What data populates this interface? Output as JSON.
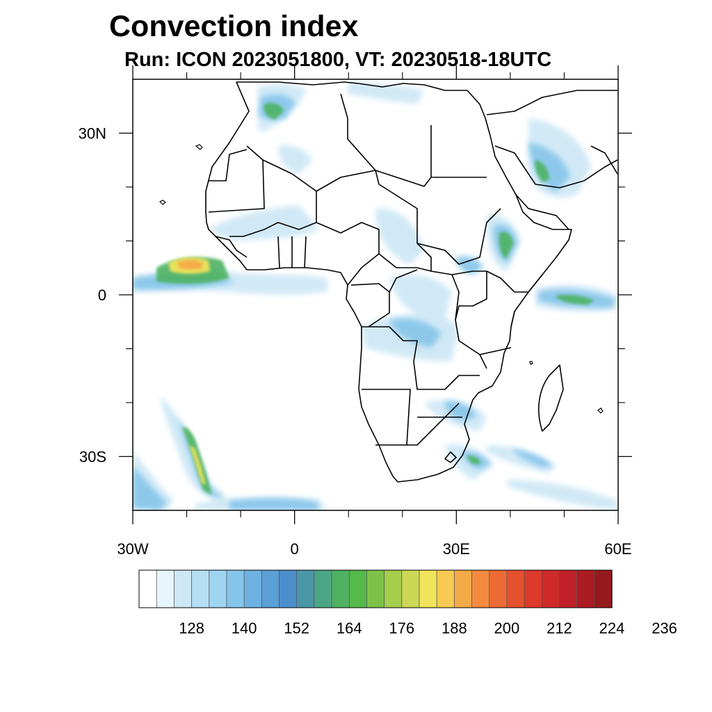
{
  "title": "Convection index",
  "subtitle": "Run: ICON 2023051800,  VT: 20230518-18UTC",
  "map": {
    "region": "Africa",
    "lon_range": [
      -30,
      60
    ],
    "lat_range": [
      -40,
      40
    ],
    "lat_ticks": [
      {
        "value": 30,
        "label": "30N"
      },
      {
        "value": 0,
        "label": "0"
      },
      {
        "value": -30,
        "label": "30S"
      }
    ],
    "lon_ticks": [
      {
        "value": -30,
        "label": "30W"
      },
      {
        "value": 0,
        "label": "0"
      },
      {
        "value": 30,
        "label": "30E"
      },
      {
        "value": 60,
        "label": "60E"
      }
    ],
    "minor_lon_ticks": [
      -20,
      -10,
      10,
      20,
      40,
      50
    ],
    "minor_lat_ticks": [
      20,
      10,
      -10,
      -20
    ]
  },
  "colorbar": {
    "labels": [
      "128",
      "140",
      "152",
      "164",
      "176",
      "188",
      "200",
      "212",
      "224",
      "236"
    ],
    "colors": [
      "#ffffff",
      "#e8f4fb",
      "#cfe8f6",
      "#b6def3",
      "#9dd5f1",
      "#86c5ea",
      "#6eb2e1",
      "#5a9fd6",
      "#4a8fcb",
      "#4a97a8",
      "#4ba685",
      "#4eb262",
      "#54ba49",
      "#7cc24a",
      "#a5ce4d",
      "#cad854",
      "#f0e45a",
      "#f7cb52",
      "#f5aa48",
      "#f38a3f",
      "#ee6a35",
      "#e5502e",
      "#dc3a2b",
      "#cf2a2a",
      "#bf2027",
      "#ab1b22",
      "#961a1d"
    ]
  },
  "colors": {
    "blue_light": "#cfe8f6",
    "blue_mid": "#86c5ea",
    "blue_dark": "#5a9fd6",
    "green": "#4eb262",
    "yellow": "#f0e45a",
    "orange": "#f5aa48"
  }
}
